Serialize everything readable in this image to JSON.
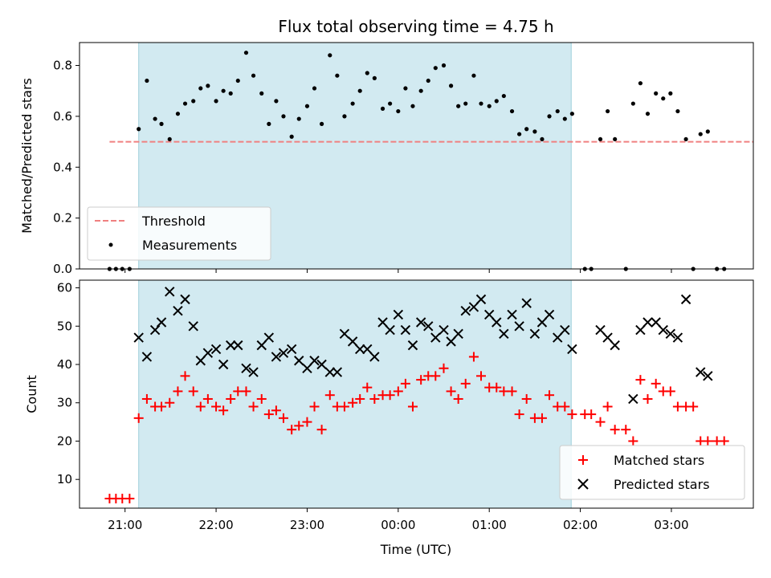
{
  "chart_data": {
    "type": "scatter",
    "title": "Flux total observing time = 4.75 h",
    "xlabel": "Time (UTC)",
    "xticks": [
      "21:00",
      "22:00",
      "23:00",
      "00:00",
      "01:00",
      "02:00",
      "03:00"
    ],
    "xlim_hours_utc": [
      20.5,
      27.9
    ],
    "shaded_interval_hours_utc": [
      21.15,
      25.9
    ],
    "panels": [
      {
        "ylabel": "Matched/Predicted stars",
        "ylim": [
          0,
          0.89
        ],
        "yticks": [
          "0.0",
          "0.2",
          "0.4",
          "0.6",
          "0.8"
        ],
        "legend_loc": "lower-left",
        "threshold": {
          "name": "Threshold",
          "y": 0.5,
          "x_range": [
            20.83,
            28.5
          ],
          "color": "#f08080"
        },
        "series": [
          {
            "name": "Measurements",
            "color": "#000000",
            "marker": "dot",
            "x": [
              20.83,
              20.9,
              20.97,
              21.05,
              21.15,
              21.24,
              21.33,
              21.4,
              21.49,
              21.58,
              21.66,
              21.75,
              21.83,
              21.91,
              22.0,
              22.08,
              22.16,
              22.24,
              22.33,
              22.41,
              22.5,
              22.58,
              22.66,
              22.74,
              22.83,
              22.91,
              23.0,
              23.08,
              23.16,
              23.25,
              23.33,
              23.41,
              23.5,
              23.58,
              23.66,
              23.74,
              23.83,
              23.91,
              24.0,
              24.08,
              24.16,
              24.25,
              24.33,
              24.41,
              24.5,
              24.58,
              24.66,
              24.74,
              24.83,
              24.91,
              25.0,
              25.08,
              25.16,
              25.25,
              25.33,
              25.41,
              25.5,
              25.58,
              25.66,
              25.75,
              25.83,
              25.91,
              26.05,
              26.12,
              26.22,
              26.3,
              26.38,
              26.5,
              26.58,
              26.66,
              26.74,
              26.83,
              26.91,
              26.99,
              27.07,
              27.16,
              27.24,
              27.32,
              27.4,
              27.5,
              27.58
            ],
            "y": [
              0,
              0,
              0,
              0,
              0.55,
              0.74,
              0.59,
              0.57,
              0.51,
              0.61,
              0.65,
              0.66,
              0.71,
              0.72,
              0.66,
              0.7,
              0.69,
              0.74,
              0.85,
              0.76,
              0.69,
              0.57,
              0.66,
              0.6,
              0.52,
              0.59,
              0.64,
              0.71,
              0.57,
              0.84,
              0.76,
              0.6,
              0.65,
              0.7,
              0.77,
              0.75,
              0.63,
              0.65,
              0.62,
              0.71,
              0.64,
              0.7,
              0.74,
              0.79,
              0.8,
              0.72,
              0.64,
              0.65,
              0.76,
              0.65,
              0.64,
              0.66,
              0.68,
              0.62,
              0.53,
              0.55,
              0.54,
              0.51,
              0.6,
              0.62,
              0.59,
              0.61,
              0,
              0,
              0.51,
              0.62,
              0.51,
              0,
              0.65,
              0.73,
              0.61,
              0.69,
              0.67,
              0.69,
              0.62,
              0.51,
              0,
              0.53,
              0.54,
              0,
              0
            ]
          }
        ]
      },
      {
        "ylabel": "Count",
        "ylim": [
          2.5,
          62
        ],
        "yticks": [
          "10",
          "20",
          "30",
          "40",
          "50",
          "60"
        ],
        "legend_loc": "lower-right",
        "series": [
          {
            "name": "Matched stars",
            "color": "#ff0000",
            "marker": "plus",
            "x": [
              20.83,
              20.9,
              20.97,
              21.05,
              21.15,
              21.24,
              21.33,
              21.4,
              21.49,
              21.58,
              21.66,
              21.75,
              21.83,
              21.91,
              22.0,
              22.08,
              22.16,
              22.24,
              22.33,
              22.41,
              22.5,
              22.58,
              22.66,
              22.74,
              22.83,
              22.91,
              23.0,
              23.08,
              23.16,
              23.25,
              23.33,
              23.41,
              23.5,
              23.58,
              23.66,
              23.74,
              23.83,
              23.91,
              24.0,
              24.08,
              24.16,
              24.25,
              24.33,
              24.41,
              24.5,
              24.58,
              24.66,
              24.74,
              24.83,
              24.91,
              25.0,
              25.08,
              25.16,
              25.25,
              25.33,
              25.41,
              25.5,
              25.58,
              25.66,
              25.75,
              25.83,
              25.91,
              26.05,
              26.12,
              26.22,
              26.3,
              26.38,
              26.5,
              26.58,
              26.66,
              26.74,
              26.83,
              26.91,
              26.99,
              27.07,
              27.16,
              27.24,
              27.32,
              27.4,
              27.5,
              27.58
            ],
            "y": [
              5,
              5,
              5,
              5,
              26,
              31,
              29,
              29,
              30,
              33,
              37,
              33,
              29,
              31,
              29,
              28,
              31,
              33,
              33,
              29,
              31,
              27,
              28,
              26,
              23,
              24,
              25,
              29,
              23,
              32,
              29,
              29,
              30,
              31,
              34,
              31,
              32,
              32,
              33,
              35,
              29,
              36,
              37,
              37,
              39,
              33,
              31,
              35,
              42,
              37,
              34,
              34,
              33,
              33,
              27,
              31,
              26,
              26,
              32,
              29,
              29,
              27,
              27,
              27,
              25,
              29,
              23,
              23,
              20,
              36,
              31,
              35,
              33,
              33,
              29,
              29,
              29,
              20,
              20,
              20,
              20
            ]
          },
          {
            "name": "Predicted stars",
            "color": "#000000",
            "marker": "x",
            "x": [
              21.15,
              21.24,
              21.33,
              21.4,
              21.49,
              21.58,
              21.66,
              21.75,
              21.83,
              21.91,
              22.0,
              22.08,
              22.16,
              22.24,
              22.33,
              22.41,
              22.5,
              22.58,
              22.66,
              22.74,
              22.83,
              22.91,
              23.0,
              23.08,
              23.16,
              23.25,
              23.33,
              23.41,
              23.5,
              23.58,
              23.66,
              23.74,
              23.83,
              23.91,
              24.0,
              24.08,
              24.16,
              24.25,
              24.33,
              24.41,
              24.5,
              24.58,
              24.66,
              24.74,
              24.83,
              24.91,
              25.0,
              25.08,
              25.16,
              25.25,
              25.33,
              25.41,
              25.5,
              25.58,
              25.66,
              25.75,
              25.83,
              25.91,
              26.22,
              26.3,
              26.38,
              26.58,
              26.66,
              26.74,
              26.83,
              26.91,
              26.99,
              27.07,
              27.16,
              27.32,
              27.4
            ],
            "y": [
              47,
              42,
              49,
              51,
              59,
              54,
              57,
              50,
              41,
              43,
              44,
              40,
              45,
              45,
              39,
              38,
              45,
              47,
              42,
              43,
              44,
              41,
              39,
              41,
              40,
              38,
              38,
              48,
              46,
              44,
              44,
              42,
              51,
              49,
              53,
              49,
              45,
              51,
              50,
              47,
              49,
              46,
              48,
              54,
              55,
              57,
              53,
              51,
              48,
              53,
              50,
              56,
              48,
              51,
              53,
              47,
              49,
              44,
              49,
              47,
              45,
              31,
              49,
              51,
              51,
              49,
              48,
              47,
              57,
              38,
              37
            ]
          }
        ]
      }
    ]
  }
}
